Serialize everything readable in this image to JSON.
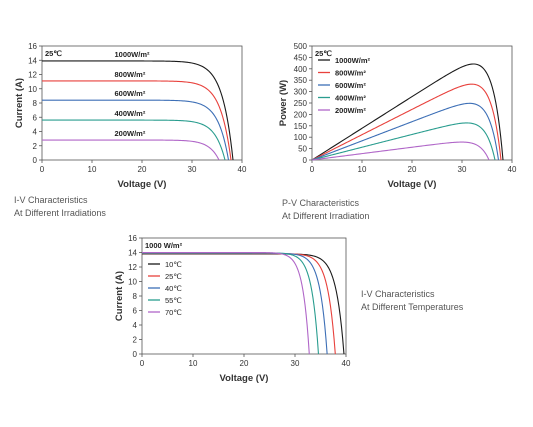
{
  "chart_data": [
    {
      "type": "line",
      "name": "iv-irradiance",
      "xlabel": "Voltage  (V)",
      "ylabel": "Current (A)",
      "xlim": [
        0,
        40
      ],
      "ylim": [
        0,
        16
      ],
      "xticks": [
        "0",
        "10",
        "20",
        "30",
        "40"
      ],
      "yticks": [
        "0",
        "2",
        "4",
        "6",
        "8",
        "10",
        "12",
        "14",
        "16"
      ],
      "annotation": "25℃",
      "label_mode": "inline",
      "series": [
        {
          "name": "1000W/m²",
          "color": "#1a1a1a",
          "isc": 13.9,
          "voc": 38.2,
          "k": 1.8
        },
        {
          "name": "800W/m²",
          "color": "#e8413c",
          "isc": 11.1,
          "voc": 37.8,
          "k": 1.8
        },
        {
          "name": "600W/m²",
          "color": "#3d6fb6",
          "isc": 8.4,
          "voc": 37.3,
          "k": 1.8
        },
        {
          "name": "400W/m²",
          "color": "#2a9d8f",
          "isc": 5.6,
          "voc": 36.6,
          "k": 1.8
        },
        {
          "name": "200W/m²",
          "color": "#b066c8",
          "isc": 2.8,
          "voc": 35.4,
          "k": 1.8
        }
      ]
    },
    {
      "type": "line",
      "name": "pv-irradiance",
      "xlabel": "Voltage  (V)",
      "ylabel": "Power (W)",
      "xlim": [
        0,
        40
      ],
      "ylim": [
        0,
        500
      ],
      "xticks": [
        "0",
        "10",
        "20",
        "30",
        "40"
      ],
      "yticks": [
        "0",
        "50",
        "100",
        "150",
        "200",
        "250",
        "300",
        "350",
        "400",
        "450",
        "500"
      ],
      "annotation": "25℃",
      "label_mode": "legend",
      "power": true,
      "series": [
        {
          "name": "1000W/m²",
          "color": "#1a1a1a",
          "isc": 13.9,
          "voc": 38.2,
          "k": 1.8
        },
        {
          "name": "800W/m²",
          "color": "#e8413c",
          "isc": 11.1,
          "voc": 37.8,
          "k": 1.8
        },
        {
          "name": "600W/m²",
          "color": "#3d6fb6",
          "isc": 8.4,
          "voc": 37.3,
          "k": 1.8
        },
        {
          "name": "400W/m²",
          "color": "#2a9d8f",
          "isc": 5.6,
          "voc": 36.6,
          "k": 1.8
        },
        {
          "name": "200W/m²",
          "color": "#b066c8",
          "isc": 2.8,
          "voc": 35.4,
          "k": 1.8
        }
      ]
    },
    {
      "type": "line",
      "name": "iv-temperature",
      "xlabel": "Voltage  (V)",
      "ylabel": "Current (A)",
      "xlim": [
        0,
        40
      ],
      "ylim": [
        0,
        16
      ],
      "xticks": [
        "0",
        "10",
        "20",
        "30",
        "40"
      ],
      "yticks": [
        "0",
        "2",
        "4",
        "6",
        "8",
        "10",
        "12",
        "14",
        "16"
      ],
      "annotation": "1000 W/m²",
      "label_mode": "legend",
      "series": [
        {
          "name": "10℃",
          "color": "#1a1a1a",
          "isc": 13.8,
          "voc": 39.6,
          "k": 2.6
        },
        {
          "name": "25℃",
          "color": "#e8413c",
          "isc": 13.85,
          "voc": 37.9,
          "k": 2.6
        },
        {
          "name": "40℃",
          "color": "#3d6fb6",
          "isc": 13.9,
          "voc": 36.3,
          "k": 2.6
        },
        {
          "name": "55℃",
          "color": "#2a9d8f",
          "isc": 13.95,
          "voc": 34.6,
          "k": 2.6
        },
        {
          "name": "70℃",
          "color": "#b066c8",
          "isc": 14.0,
          "voc": 32.8,
          "k": 2.6
        }
      ]
    }
  ],
  "captions": {
    "iv_irradiation": [
      "I-V Characteristics",
      "At Different Irradiations"
    ],
    "pv_irradiation": [
      "P-V Characteristics",
      "At Different Irradiation"
    ],
    "iv_temperature": [
      "I-V Characteristics",
      "At Different Temperatures"
    ]
  }
}
